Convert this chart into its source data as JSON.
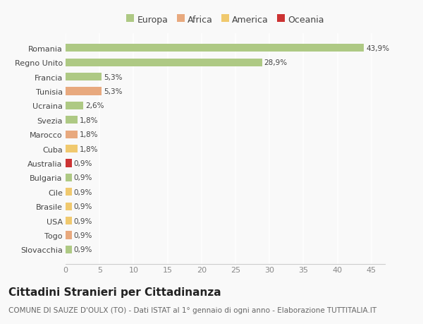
{
  "countries": [
    "Romania",
    "Regno Unito",
    "Francia",
    "Tunisia",
    "Ucraina",
    "Svezia",
    "Marocco",
    "Cuba",
    "Australia",
    "Bulgaria",
    "Cile",
    "Brasile",
    "USA",
    "Togo",
    "Slovacchia"
  ],
  "values": [
    43.9,
    28.9,
    5.3,
    5.3,
    2.6,
    1.8,
    1.8,
    1.8,
    0.9,
    0.9,
    0.9,
    0.9,
    0.9,
    0.9,
    0.9
  ],
  "labels": [
    "43,9%",
    "28,9%",
    "5,3%",
    "5,3%",
    "2,6%",
    "1,8%",
    "1,8%",
    "1,8%",
    "0,9%",
    "0,9%",
    "0,9%",
    "0,9%",
    "0,9%",
    "0,9%",
    "0,9%"
  ],
  "colors": [
    "#aec984",
    "#aec984",
    "#aec984",
    "#e8a97e",
    "#aec984",
    "#aec984",
    "#e8a97e",
    "#f0c96e",
    "#cc3333",
    "#aec984",
    "#f0c96e",
    "#f0c96e",
    "#f0c96e",
    "#e8a97e",
    "#aec984"
  ],
  "continent_colors": {
    "Europa": "#aec984",
    "Africa": "#e8a97e",
    "America": "#f0c96e",
    "Oceania": "#cc3333"
  },
  "xlim": [
    0,
    47
  ],
  "xticks": [
    0,
    5,
    10,
    15,
    20,
    25,
    30,
    35,
    40,
    45
  ],
  "title": "Cittadini Stranieri per Cittadinanza",
  "subtitle": "COMUNE DI SAUZE D'OULX (TO) - Dati ISTAT al 1° gennaio di ogni anno - Elaborazione TUTTITALIA.IT",
  "background_color": "#f9f9f9",
  "grid_color": "#ffffff",
  "bar_height": 0.55,
  "title_fontsize": 11,
  "subtitle_fontsize": 7.5,
  "label_fontsize": 7.5,
  "tick_fontsize": 8,
  "legend_fontsize": 9
}
